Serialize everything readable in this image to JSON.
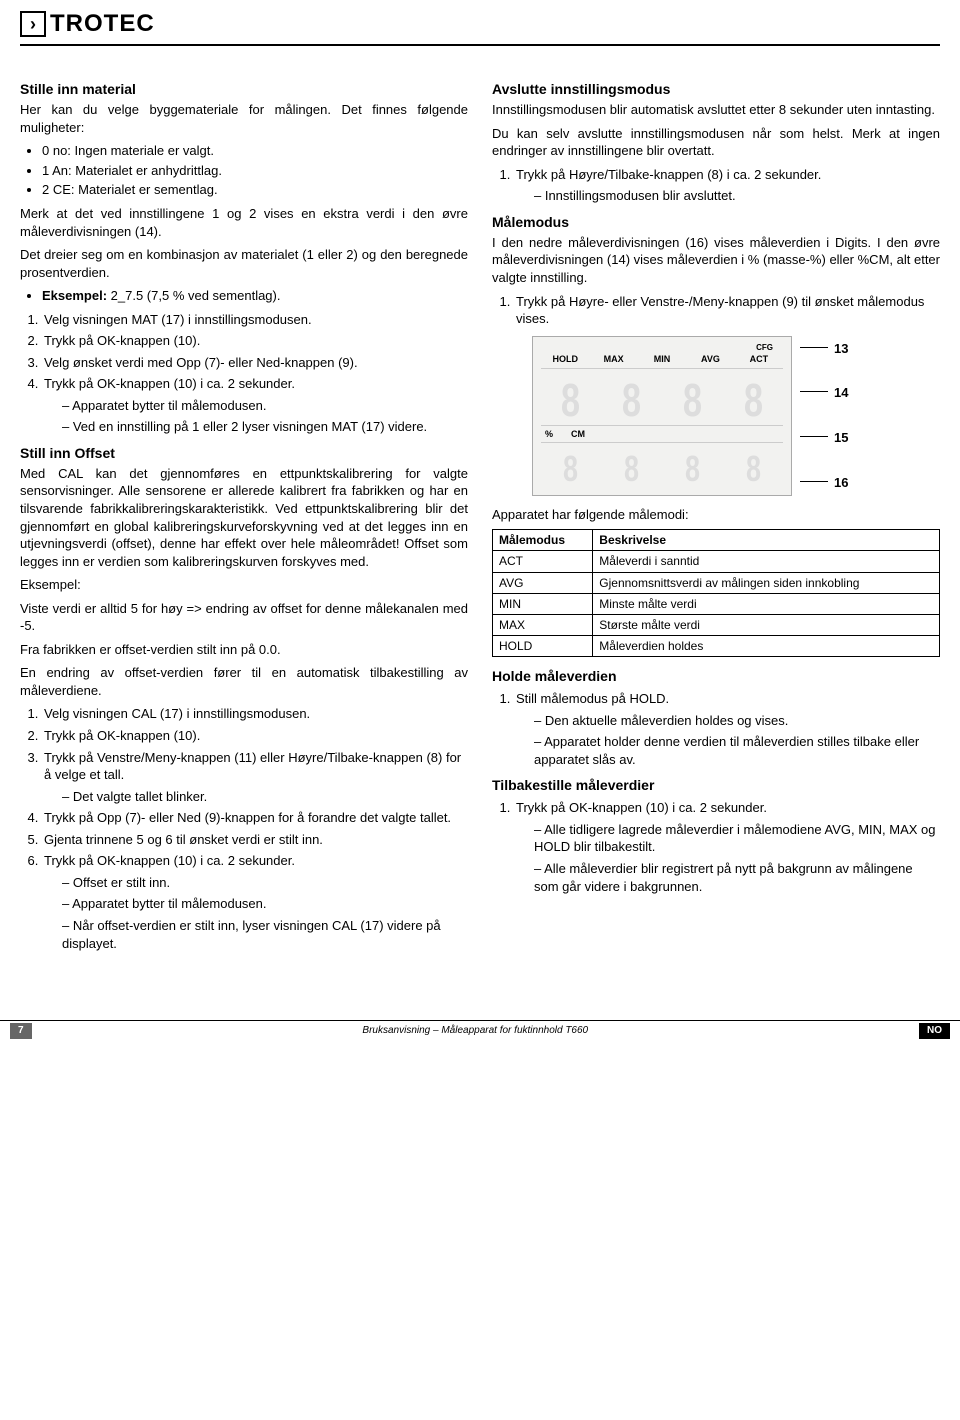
{
  "header": {
    "brand": "TROTEC"
  },
  "left": {
    "s1": {
      "title": "Stille inn material",
      "p1": "Her kan du velge byggemateriale for målingen. Det finnes følgende muligheter:",
      "b1": "0 no: Ingen materiale er valgt.",
      "b2": "1 An: Materialet er anhydrittlag.",
      "b3": "2 CE: Materialet er sementlag.",
      "p2": "Merk at det ved innstillingene 1 og 2 vises en ekstra verdi i den øvre måleverdivisningen (14).",
      "p3": "Det dreier seg om en kombinasjon av materialet (1 eller 2) og den beregnede prosentverdien.",
      "b4_lead": "Eksempel:",
      "b4_rest": " 2_7.5 (7,5 % ved sementlag).",
      "o1": "Velg visningen MAT (17) i innstillingsmodusen.",
      "o2": "Trykk på OK-knappen (10).",
      "o3": "Velg ønsket verdi med Opp (7)- eller Ned-knappen (9).",
      "o4": "Trykk på OK-knappen (10) i ca. 2 sekunder.",
      "o4a": "Apparatet bytter til målemodusen.",
      "o4b": "Ved en innstilling på 1 eller 2 lyser visningen MAT (17) videre."
    },
    "s2": {
      "title": "Still inn Offset",
      "p1": "Med CAL kan det gjennomføres en ettpunktskalibrering for valgte sensorvisninger. Alle sensorene er allerede kalibrert fra fabrikken og har en tilsvarende fabrikkalibreringskarakteristikk. Ved ettpunktskalibrering blir det gjennomført en global kalibreringskurveforskyvning ved at det legges inn en utjevningsverdi (offset), denne har effekt over hele måleområdet! Offset som legges inn er verdien som kalibreringskurven forskyves med.",
      "p2": "Eksempel:",
      "p3": "Viste verdi er alltid 5 for høy => endring av offset for denne målekanalen med -5.",
      "p4": "Fra fabrikken er offset-verdien stilt inn på 0.0.",
      "p5": "En endring av offset-verdien fører til en automatisk tilbakestilling av måleverdiene.",
      "o1": "Velg visningen CAL (17) i innstillingsmodusen.",
      "o2": "Trykk på OK-knappen (10).",
      "o3": "Trykk på Venstre/Meny-knappen (11) eller Høyre/Tilbake-knappen (8) for å velge et tall.",
      "o3a": "Det valgte tallet blinker.",
      "o4": "Trykk på Opp (7)- eller Ned (9)-knappen for å forandre det valgte tallet.",
      "o5": "Gjenta trinnene 5 og 6 til ønsket verdi er stilt inn.",
      "o6": "Trykk på OK-knappen (10) i ca. 2 sekunder.",
      "o6a": "Offset er stilt inn.",
      "o6b": "Apparatet bytter til målemodusen.",
      "o6c": "Når offset-verdien er stilt inn, lyser visningen CAL (17) videre på displayet."
    }
  },
  "right": {
    "s1": {
      "title": "Avslutte innstillingsmodus",
      "p1": "Innstillingsmodusen blir automatisk avsluttet etter 8 sekunder uten inntasting.",
      "p2": "Du kan selv avslutte innstillingsmodusen når som helst. Merk at ingen endringer av innstillingene blir overtatt.",
      "o1": "Trykk på Høyre/Tilbake-knappen (8) i ca. 2 sekunder.",
      "o1a": "Innstillingsmodusen blir avsluttet."
    },
    "s2": {
      "title": "Målemodus",
      "p1": "I den nedre måleverdivisningen (16) vises måleverdien i Digits. I den øvre måleverdivisningen (14) vises måleverdien i % (masse-%) eller %CM, alt etter valgte innstilling.",
      "o1": "Trykk på Høyre- eller Venstre-/Meny-knappen (9) til ønsket målemodus vises."
    },
    "lcd": {
      "top": [
        "HOLD",
        "MAX",
        "MIN",
        "AVG",
        "ACT"
      ],
      "cfg": "CFG",
      "mid": [
        "%",
        "CM"
      ],
      "ptr": [
        "13",
        "14",
        "15",
        "16"
      ]
    },
    "table": {
      "caption": "Apparatet har følgende målemodi:",
      "h1": "Målemodus",
      "h2": "Beskrivelse",
      "r": [
        [
          "ACT",
          "Måleverdi i sanntid"
        ],
        [
          "AVG",
          "Gjennomsnittsverdi av målingen siden innkobling"
        ],
        [
          "MIN",
          "Minste målte verdi"
        ],
        [
          "MAX",
          "Største målte verdi"
        ],
        [
          "HOLD",
          "Måleverdien holdes"
        ]
      ]
    },
    "s3": {
      "title": "Holde måleverdien",
      "o1": "Still målemodus på HOLD.",
      "o1a": "Den aktuelle måleverdien holdes og vises.",
      "o1b": "Apparatet holder denne verdien til måleverdien stilles tilbake eller apparatet slås av."
    },
    "s4": {
      "title": "Tilbakestille måleverdier",
      "o1": "Trykk på OK-knappen (10) i ca. 2 sekunder.",
      "o1a": "Alle tidligere lagrede måleverdier i målemodiene AVG, MIN, MAX og HOLD blir tilbakestilt.",
      "o1b": "Alle måleverdier blir registrert på nytt på bakgrunn av målingene som går videre i bakgrunnen."
    }
  },
  "footer": {
    "page": "7",
    "mid": "Bruksanvisning – Måleapparat for fuktinnhold T660",
    "lang": "NO"
  }
}
